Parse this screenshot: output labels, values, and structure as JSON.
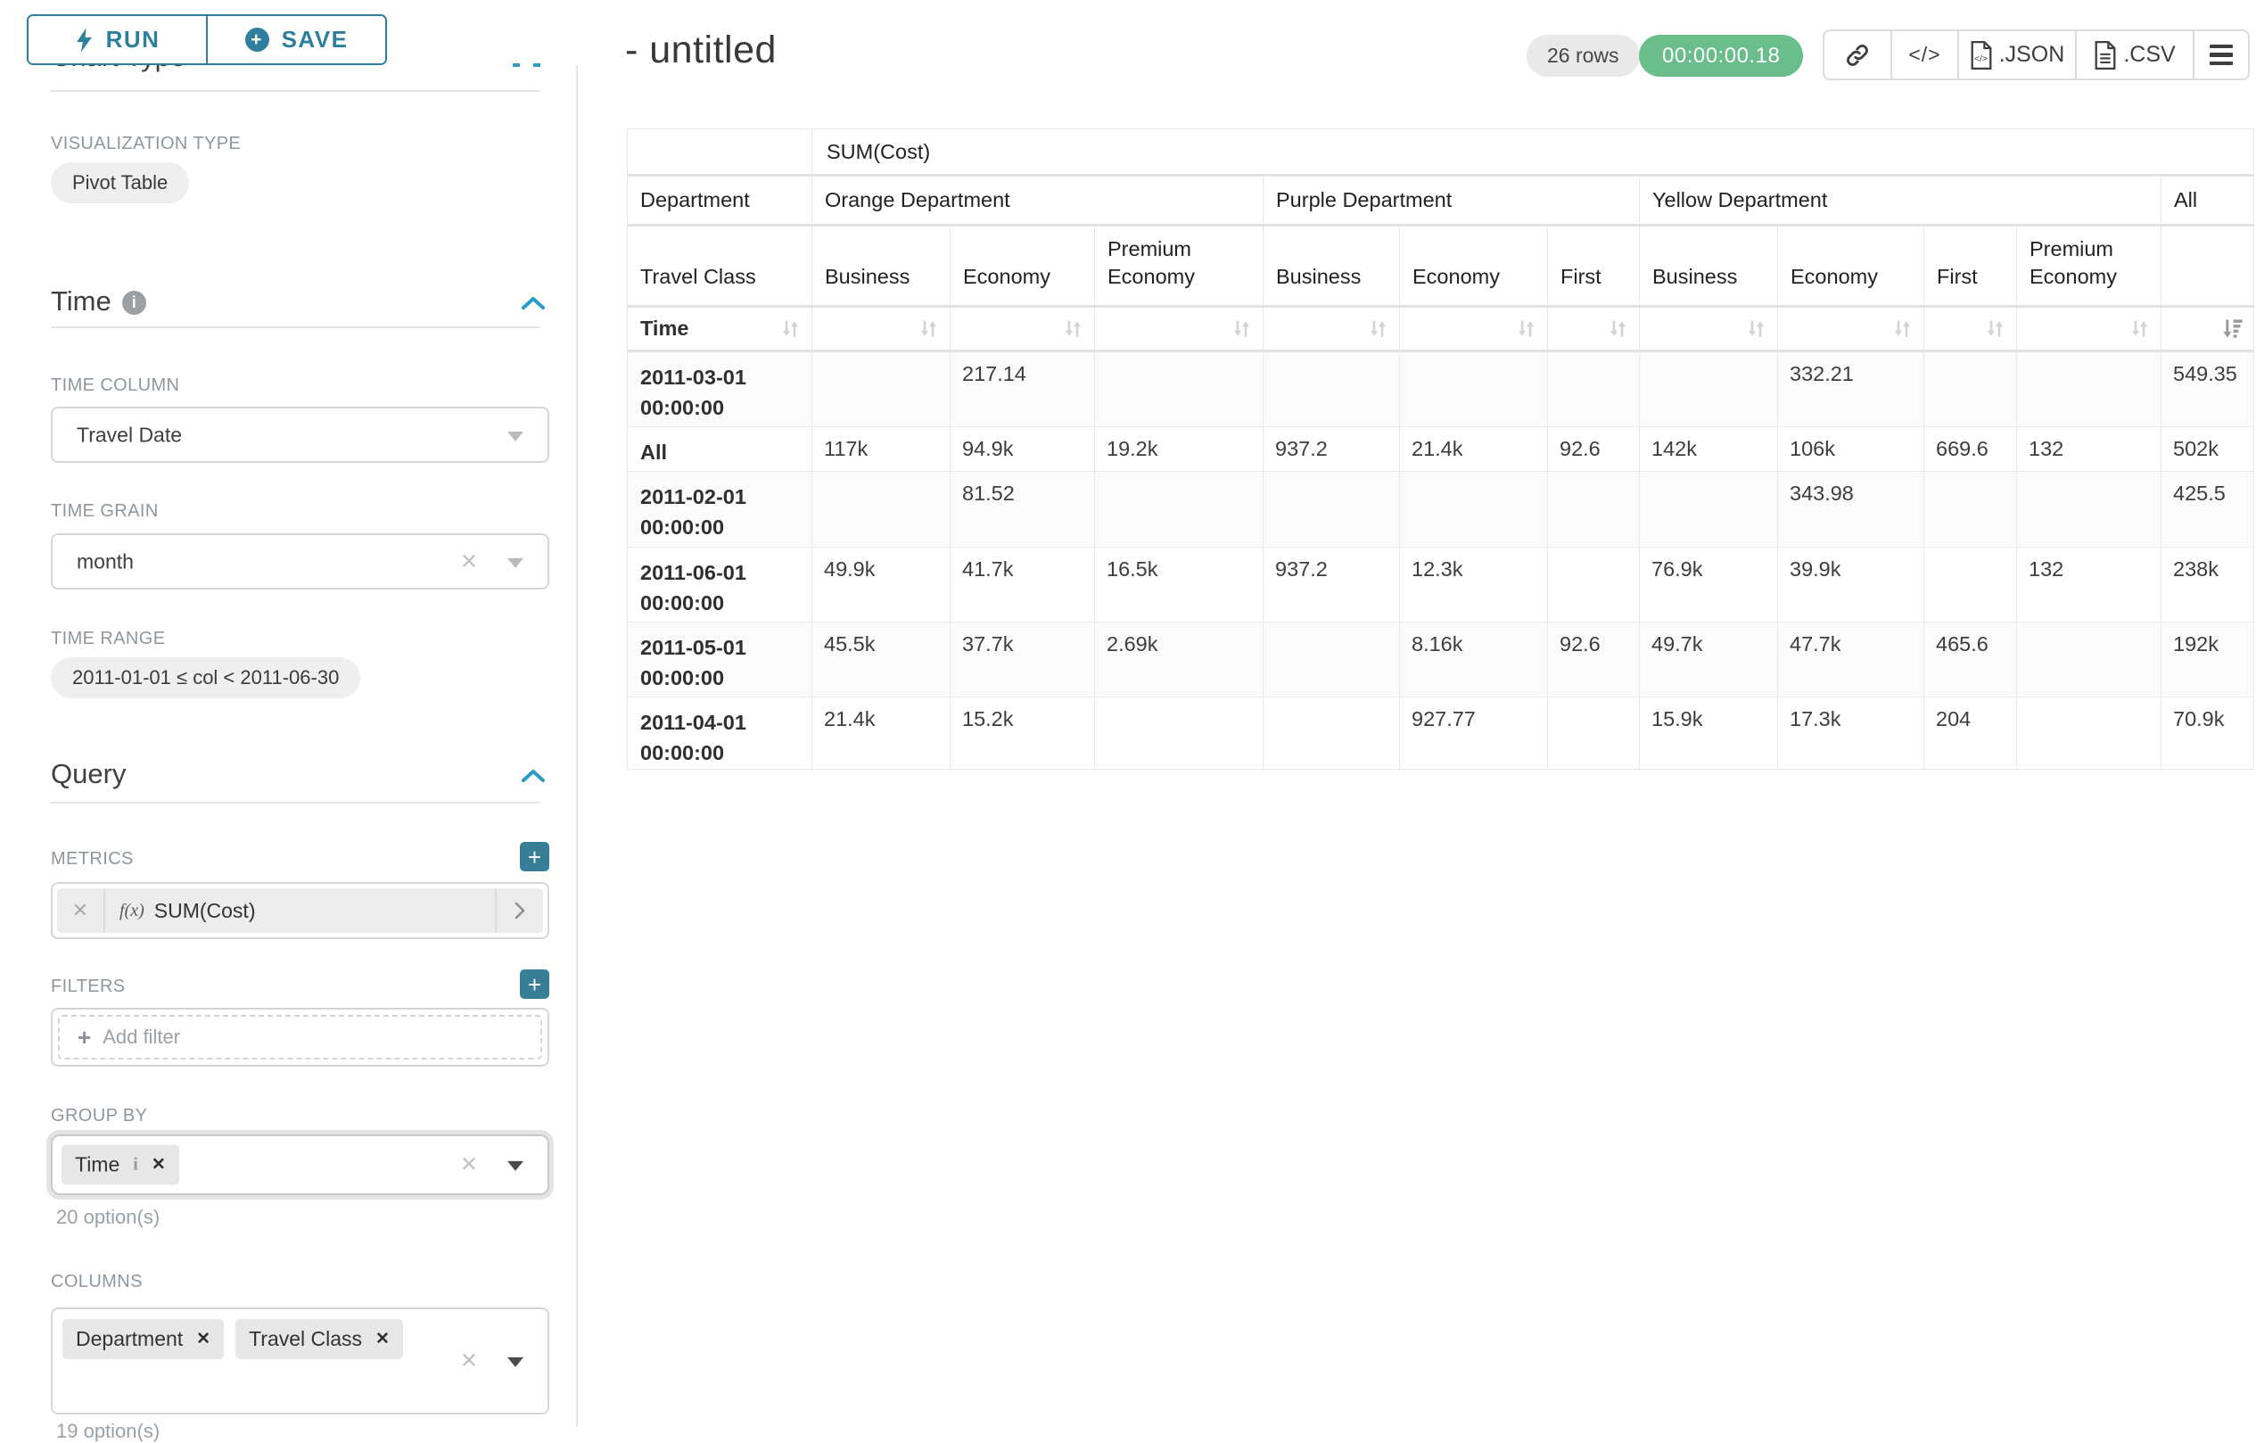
{
  "app": {
    "accent_teal": "#2e7f9b",
    "success_green": "#6abe8b"
  },
  "sidebar": {
    "run_label": "RUN",
    "save_label": "SAVE",
    "chart_type_section": "Chart Type",
    "viz_type_label": "VISUALIZATION TYPE",
    "viz_type_value": "Pivot Table",
    "time_section": "Time",
    "time_column_label": "TIME COLUMN",
    "time_column_value": "Travel Date",
    "time_grain_label": "TIME GRAIN",
    "time_grain_value": "month",
    "time_range_label": "TIME RANGE",
    "time_range_value": "2011-01-01 ≤ col < 2011-06-30",
    "query_section": "Query",
    "metrics_label": "METRICS",
    "metric_fx": "f(x)",
    "metric_value": "SUM(Cost)",
    "filters_label": "FILTERS",
    "add_filter_label": "Add filter",
    "group_by_label": "GROUP BY",
    "group_by_tags": [
      "Time"
    ],
    "group_by_options": "20 option(s)",
    "columns_label": "COLUMNS",
    "columns_tags": [
      "Department",
      "Travel Class"
    ],
    "columns_options": "19 option(s)"
  },
  "header": {
    "title": "- untitled",
    "rows_badge": "26 rows",
    "timer": "00:00:00.18",
    "code_glyph": "</>",
    "export_json": ".JSON",
    "export_csv": ".CSV"
  },
  "chart_data": {
    "type": "table",
    "metric_header": "SUM(Cost)",
    "row_dimension": "Department",
    "class_dimension": "Travel Class",
    "time_dimension": "Time",
    "groups": [
      {
        "label": "Orange Department",
        "classes": [
          "Business",
          "Economy",
          "Premium Economy"
        ]
      },
      {
        "label": "Purple Department",
        "classes": [
          "Business",
          "Economy",
          "First"
        ]
      },
      {
        "label": "Yellow Department",
        "classes": [
          "Business",
          "Economy",
          "First",
          "Premium Economy"
        ]
      },
      {
        "label": "All",
        "classes": [
          ""
        ]
      }
    ],
    "rows": [
      {
        "label": "2011-03-01 00:00:00",
        "values": [
          "",
          "217.14",
          "",
          "",
          "",
          "",
          "",
          "332.21",
          "",
          "",
          "549.35"
        ]
      },
      {
        "label": "All",
        "values": [
          "117k",
          "94.9k",
          "19.2k",
          "937.2",
          "21.4k",
          "92.6",
          "142k",
          "106k",
          "669.6",
          "132",
          "502k"
        ]
      },
      {
        "label": "2011-02-01 00:00:00",
        "values": [
          "",
          "81.52",
          "",
          "",
          "",
          "",
          "",
          "343.98",
          "",
          "",
          "425.5"
        ]
      },
      {
        "label": "2011-06-01 00:00:00",
        "values": [
          "49.9k",
          "41.7k",
          "16.5k",
          "937.2",
          "12.3k",
          "",
          "76.9k",
          "39.9k",
          "",
          "132",
          "238k"
        ]
      },
      {
        "label": "2011-05-01 00:00:00",
        "values": [
          "45.5k",
          "37.7k",
          "2.69k",
          "",
          "8.16k",
          "92.6",
          "49.7k",
          "47.7k",
          "465.6",
          "",
          "192k"
        ]
      },
      {
        "label": "2011-04-01 00:00:00",
        "values": [
          "21.4k",
          "15.2k",
          "",
          "",
          "927.77",
          "",
          "15.9k",
          "17.3k",
          "204",
          "",
          "70.9k"
        ]
      }
    ]
  }
}
